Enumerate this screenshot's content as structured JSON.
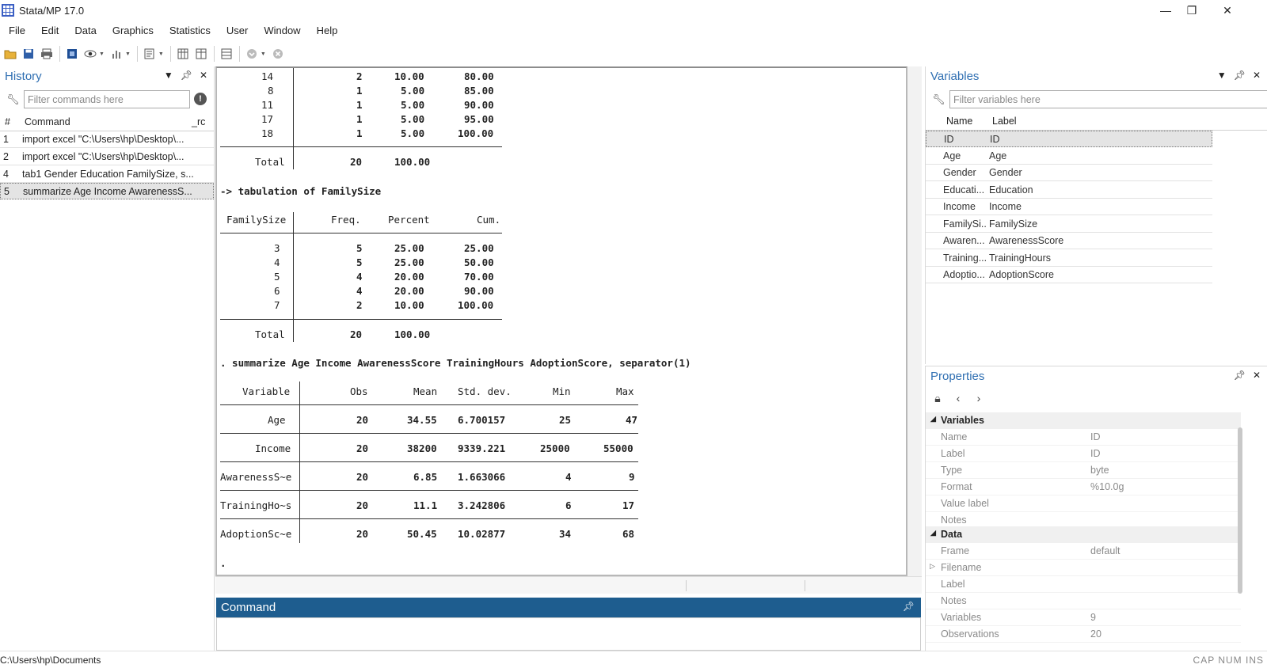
{
  "window": {
    "title": "Stata/MP 17.0",
    "controls": [
      "—",
      "❐",
      "✕"
    ]
  },
  "menu": [
    "File",
    "Edit",
    "Data",
    "Graphics",
    "Statistics",
    "User",
    "Window",
    "Help"
  ],
  "toolbar": {
    "icons": [
      "open-icon",
      "save-icon",
      "print-icon",
      "log-icon",
      "viewer-icon",
      "graph-icon",
      "do-file-editor-icon",
      "data-editor-icon",
      "data-browser-icon",
      "variables-manager-icon",
      "more-icon",
      "break-icon"
    ]
  },
  "history": {
    "title": "History",
    "filter_placeholder": "Filter commands here",
    "columns": {
      "num": "#",
      "command": "Command",
      "rc": "_rc"
    },
    "rows": [
      {
        "num": "1",
        "command": "import excel \"C:\\Users\\hp\\Desktop\\..."
      },
      {
        "num": "2",
        "command": "import excel \"C:\\Users\\hp\\Desktop\\..."
      },
      {
        "num": "4",
        "command": "tab1 Gender Education FamilySize, s..."
      },
      {
        "num": "5",
        "command": "summarize Age Income AwarenessS..."
      }
    ]
  },
  "results": {
    "tab1_tail": {
      "rows": [
        [
          "14",
          "2",
          "10.00",
          "80.00"
        ],
        [
          "8",
          "1",
          "5.00",
          "85.00"
        ],
        [
          "11",
          "1",
          "5.00",
          "90.00"
        ],
        [
          "17",
          "1",
          "5.00",
          "95.00"
        ],
        [
          "18",
          "1",
          "5.00",
          "100.00"
        ]
      ],
      "total": [
        "Total",
        "20",
        "100.00"
      ]
    },
    "tab2": {
      "heading": "-> tabulation of FamilySize",
      "headers": [
        "FamilySize",
        "Freq.",
        "Percent",
        "Cum."
      ],
      "rows": [
        [
          "3",
          "5",
          "25.00",
          "25.00"
        ],
        [
          "4",
          "5",
          "25.00",
          "50.00"
        ],
        [
          "5",
          "4",
          "20.00",
          "70.00"
        ],
        [
          "6",
          "4",
          "20.00",
          "90.00"
        ],
        [
          "7",
          "2",
          "10.00",
          "100.00"
        ]
      ],
      "total": [
        "Total",
        "20",
        "100.00"
      ]
    },
    "summarize": {
      "command": ". summarize Age Income AwarenessScore TrainingHours AdoptionScore, separator(1)",
      "headers": [
        "Variable",
        "Obs",
        "Mean",
        "Std. dev.",
        "Min",
        "Max"
      ],
      "rows": [
        [
          "Age",
          "20",
          "34.55",
          "6.700157",
          "25",
          "47"
        ],
        [
          "Income",
          "20",
          "38200",
          "9339.221",
          "25000",
          "55000"
        ],
        [
          "AwarenessS~e",
          "20",
          "6.85",
          "1.663066",
          "4",
          "9"
        ],
        [
          "TrainingHo~s",
          "20",
          "11.1",
          "3.242806",
          "6",
          "17"
        ],
        [
          "AdoptionSc~e",
          "20",
          "50.45",
          "10.02877",
          "34",
          "68"
        ]
      ]
    },
    "prompt": "."
  },
  "command": {
    "title": "Command"
  },
  "variables": {
    "title": "Variables",
    "filter_placeholder": "Filter variables here",
    "columns": {
      "name": "Name",
      "label": "Label"
    },
    "rows": [
      {
        "name": "ID",
        "label": "ID"
      },
      {
        "name": "Age",
        "label": "Age"
      },
      {
        "name": "Gender",
        "label": "Gender"
      },
      {
        "name": "Educati...",
        "label": "Education"
      },
      {
        "name": "Income",
        "label": "Income"
      },
      {
        "name": "FamilySi...",
        "label": "FamilySize"
      },
      {
        "name": "Awaren...",
        "label": "AwarenessScore"
      },
      {
        "name": "Training...",
        "label": "TrainingHours"
      },
      {
        "name": "Adoptio...",
        "label": "AdoptionScore"
      }
    ]
  },
  "properties": {
    "title": "Properties",
    "sections": [
      {
        "label": "Variables",
        "rows": [
          {
            "key": "Name",
            "value": "ID"
          },
          {
            "key": "Label",
            "value": "ID"
          },
          {
            "key": "Type",
            "value": "byte"
          },
          {
            "key": "Format",
            "value": "%10.0g"
          },
          {
            "key": "Value label",
            "value": ""
          },
          {
            "key": "Notes",
            "value": ""
          }
        ]
      },
      {
        "label": "Data",
        "rows": [
          {
            "key": "Frame",
            "value": "default"
          },
          {
            "key": "Filename",
            "value": ""
          },
          {
            "key": "Label",
            "value": ""
          },
          {
            "key": "Notes",
            "value": ""
          },
          {
            "key": "Variables",
            "value": "9"
          },
          {
            "key": "Observations",
            "value": "20"
          }
        ]
      }
    ]
  },
  "status": {
    "path": "C:\\Users\\hp\\Documents",
    "indicators": "CAP  NUM  INS"
  }
}
